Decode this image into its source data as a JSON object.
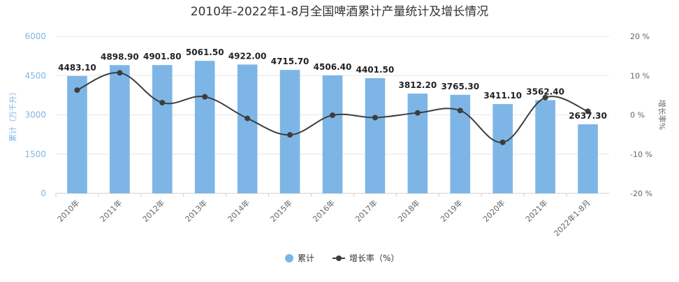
{
  "chart_data": {
    "type": "bar",
    "title": "2010年-2022年1-8月全国啤酒累计产量统计及增长情况",
    "categories": [
      "2010年",
      "2011年",
      "2012年",
      "2013年",
      "2014年",
      "2015年",
      "2016年",
      "2017年",
      "2018年",
      "2019年",
      "2020年",
      "2021年",
      "2022年1-8月"
    ],
    "series": [
      {
        "name": "累计",
        "type": "bar",
        "axis": "left",
        "color": "#7db6e6",
        "values": [
          4483.1,
          4898.9,
          4901.8,
          5061.5,
          4922.0,
          4715.7,
          4506.4,
          4401.5,
          3812.2,
          3765.3,
          3411.1,
          3562.4,
          2637.3
        ],
        "labels": [
          "4483.10",
          "4898.90",
          "4901.80",
          "5061.50",
          "4922.00",
          "4715.70",
          "4506.40",
          "4401.50",
          "3812.20",
          "3765.30",
          "3411.10",
          "3562.40",
          "2637.30"
        ]
      },
      {
        "name": "增长率（%）",
        "type": "line",
        "axis": "right",
        "color": "#3d3d3d",
        "values": [
          6.3,
          10.7,
          3.1,
          4.6,
          -0.9,
          -5.1,
          -0.1,
          -0.7,
          0.5,
          1.1,
          -7.0,
          4.4,
          0.9
        ]
      }
    ],
    "ylabel_left": "累计（万千升）",
    "ylabel_right": "增长率%",
    "ylim_left": [
      0,
      6000
    ],
    "yticks_left": [
      "0",
      "1500",
      "3000",
      "4500",
      "6000"
    ],
    "ylim_right": [
      -20,
      20
    ],
    "yticks_right": [
      "-20 %",
      "-10 %",
      "0 %",
      "10 %",
      "20 %"
    ],
    "grid": true,
    "legend": "bottom-center"
  }
}
